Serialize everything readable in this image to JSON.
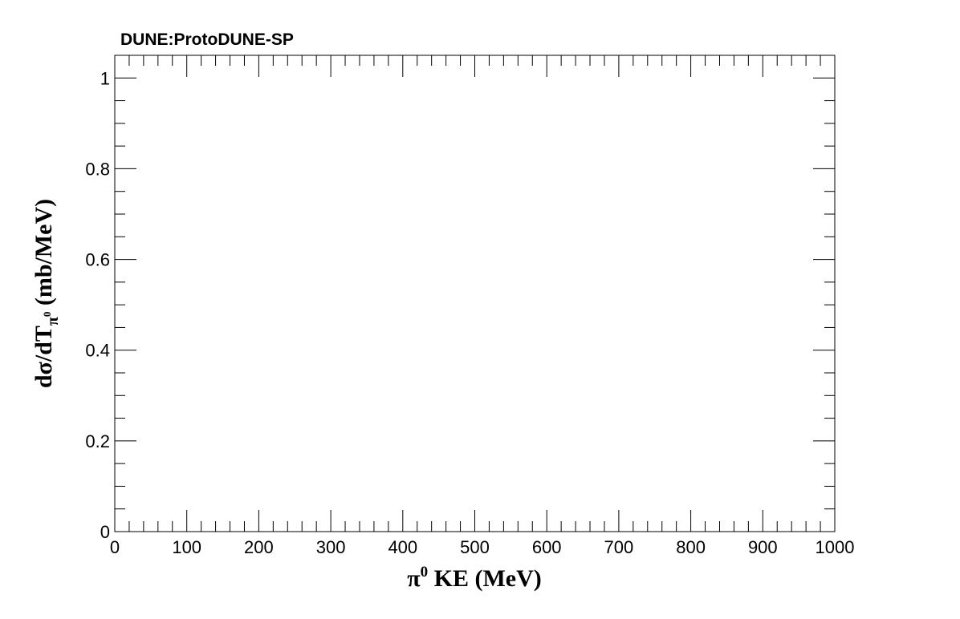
{
  "chart_data": {
    "type": "line",
    "title": "DUNE:ProtoDUNE-SP",
    "xlabel": {
      "base": "π",
      "sup": "0",
      "rest": " KE (MeV)"
    },
    "ylabel": {
      "base": "dσ/dT",
      "sub": "π",
      "subsup": "0",
      "rest": " (mb/MeV)"
    },
    "xlim": [
      0,
      1000
    ],
    "ylim": [
      0,
      1.05
    ],
    "x_ticks": [
      0,
      100,
      200,
      300,
      400,
      500,
      600,
      700,
      800,
      900,
      1000
    ],
    "x_tick_labels": [
      "0",
      "100",
      "200",
      "300",
      "400",
      "500",
      "600",
      "700",
      "800",
      "900",
      "1000"
    ],
    "y_ticks": [
      0,
      0.2,
      0.4,
      0.6,
      0.8,
      1.0
    ],
    "y_tick_labels": [
      "0",
      "0.2",
      "0.4",
      "0.6",
      "0.8",
      "1"
    ],
    "x_minor_step": 20,
    "y_minor_step": 0.05,
    "grid": false,
    "series": []
  }
}
